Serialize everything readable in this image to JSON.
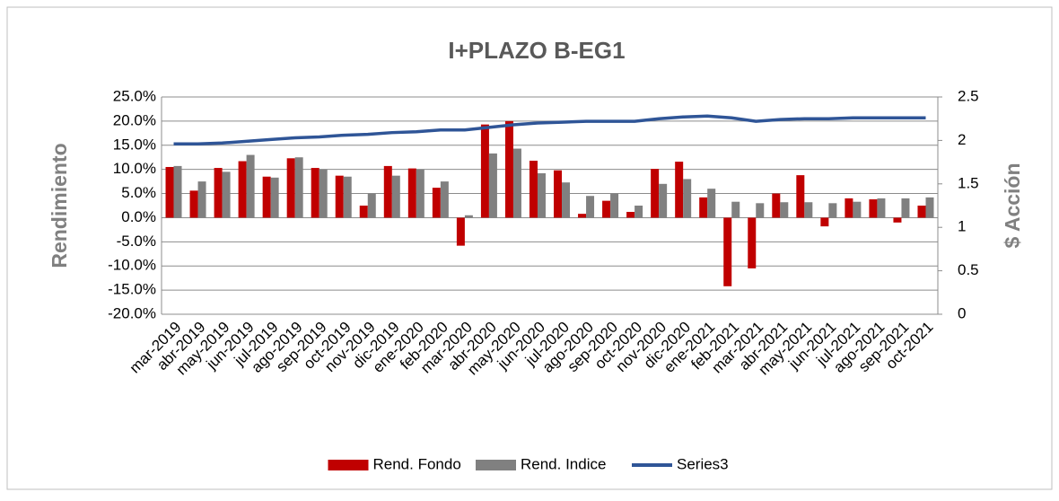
{
  "chart_data": {
    "type": "bar-line",
    "title": "I+PLAZO B-EG1",
    "y_label": "Rendimiento",
    "y2_label": "$ Acción",
    "categories": [
      "mar-2019",
      "abr-2019",
      "may-2019",
      "jun-2019",
      "jul-2019",
      "ago-2019",
      "sep-2019",
      "oct-2019",
      "nov-2019",
      "dic-2019",
      "ene-2020",
      "feb-2020",
      "mar-2020",
      "abr-2020",
      "may-2020",
      "jun-2020",
      "jul-2020",
      "ago-2020",
      "sep-2020",
      "oct-2020",
      "nov-2020",
      "dic-2020",
      "ene-2021",
      "feb-2021",
      "mar-2021",
      "abr-2021",
      "may-2021",
      "jun-2021",
      "jul-2021",
      "ago-2021",
      "sep-2021",
      "oct-2021"
    ],
    "series": [
      {
        "name": "Rend. Fondo",
        "color": "#c00000",
        "type": "bar",
        "values": [
          10.5,
          5.6,
          10.3,
          11.7,
          8.5,
          12.3,
          10.3,
          8.7,
          2.5,
          10.7,
          10.2,
          6.2,
          -5.8,
          19.3,
          20.0,
          11.8,
          9.8,
          0.8,
          3.5,
          1.2,
          10.1,
          11.6,
          4.2,
          -14.2,
          -10.5,
          5.0,
          8.8,
          -1.8,
          4.0,
          3.8,
          -1.0,
          2.5
        ]
      },
      {
        "name": "Rend. Indice",
        "color": "#808080",
        "type": "bar",
        "values": [
          10.7,
          7.5,
          9.5,
          13.0,
          8.3,
          12.5,
          10.0,
          8.5,
          5.0,
          8.7,
          10.0,
          7.5,
          0.5,
          13.3,
          14.3,
          9.2,
          7.3,
          4.5,
          5.0,
          2.5,
          7.0,
          8.0,
          6.0,
          3.3,
          3.0,
          3.2,
          3.2,
          3.0,
          3.3,
          4.0,
          4.0,
          4.2
        ]
      },
      {
        "name": "Series3",
        "color": "#2f5597",
        "type": "line",
        "axis": "y2",
        "values": [
          1.96,
          1.96,
          1.97,
          1.99,
          2.01,
          2.03,
          2.04,
          2.06,
          2.07,
          2.09,
          2.1,
          2.12,
          2.12,
          2.15,
          2.18,
          2.2,
          2.21,
          2.22,
          2.22,
          2.22,
          2.25,
          2.27,
          2.28,
          2.26,
          2.22,
          2.24,
          2.25,
          2.25,
          2.26,
          2.26,
          2.26,
          2.26
        ]
      }
    ],
    "ylim": [
      -20,
      25
    ],
    "yticks": [
      {
        "value": -20,
        "label": "-20.0%"
      },
      {
        "value": -15,
        "label": "-15.0%"
      },
      {
        "value": -10,
        "label": "-10.0%"
      },
      {
        "value": -5,
        "label": "-5.0%"
      },
      {
        "value": 0,
        "label": "0.0%"
      },
      {
        "value": 5,
        "label": "5.0%"
      },
      {
        "value": 10,
        "label": "10.0%"
      },
      {
        "value": 15,
        "label": "15.0%"
      },
      {
        "value": 20,
        "label": "20.0%"
      },
      {
        "value": 25,
        "label": "25.0%"
      }
    ],
    "y2lim": [
      0,
      2.5
    ],
    "y2ticks": [
      0,
      0.5,
      1,
      1.5,
      2,
      2.5
    ],
    "grid": true,
    "legend": "bottom"
  }
}
